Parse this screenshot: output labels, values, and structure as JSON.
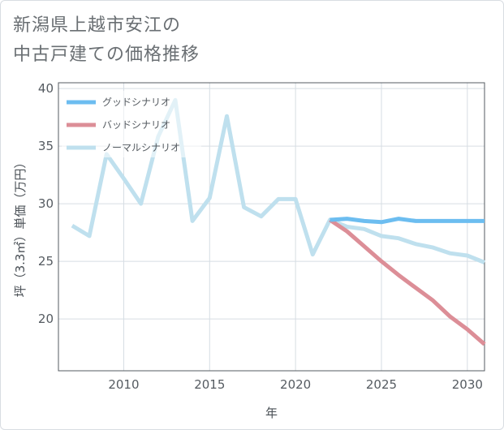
{
  "title": {
    "line1": "新潟県上越市安江の",
    "line2": "中古戸建ての価格推移"
  },
  "chart_data": {
    "type": "line",
    "title": "新潟県上越市安江の中古戸建ての価格推移",
    "xlabel": "年",
    "ylabel": "坪（3.3㎡）単価（万円）",
    "xlim": [
      2006.2,
      2031
    ],
    "ylim": [
      15.5,
      40.5
    ],
    "xticks": [
      2010,
      2015,
      2020,
      2025,
      2030
    ],
    "yticks": [
      20,
      25,
      30,
      35,
      40
    ],
    "grid": true,
    "legend_position": "top-left",
    "series": [
      {
        "name": "グッドシナリオ",
        "color": "#6cbdf0",
        "x": [
          2022,
          2023,
          2024,
          2025,
          2026,
          2027,
          2028,
          2029,
          2030,
          2031
        ],
        "values": [
          28.6,
          28.7,
          28.5,
          28.4,
          28.7,
          28.5,
          28.5,
          28.5,
          28.5,
          28.5
        ]
      },
      {
        "name": "バッドシナリオ",
        "color": "#dc8e97",
        "x": [
          2022,
          2023,
          2024,
          2025,
          2026,
          2027,
          2028,
          2029,
          2030,
          2031
        ],
        "values": [
          28.6,
          27.6,
          26.3,
          25.0,
          23.8,
          22.7,
          21.6,
          20.2,
          19.1,
          17.8
        ]
      },
      {
        "name": "ノーマルシナリオ",
        "color": "#bfe0ee",
        "x": [
          2007,
          2008,
          2009,
          2010,
          2011,
          2012,
          2013,
          2014,
          2015,
          2016,
          2017,
          2018,
          2019,
          2020,
          2021,
          2022,
          2023,
          2024,
          2025,
          2026,
          2027,
          2028,
          2029,
          2030,
          2031
        ],
        "values": [
          28.1,
          27.2,
          34.3,
          32.2,
          30.0,
          35.8,
          39.0,
          28.5,
          30.5,
          37.6,
          29.7,
          28.9,
          30.4,
          30.4,
          25.6,
          28.6,
          28.0,
          27.8,
          27.2,
          27.0,
          26.5,
          26.2,
          25.7,
          25.5,
          24.9
        ]
      }
    ]
  }
}
